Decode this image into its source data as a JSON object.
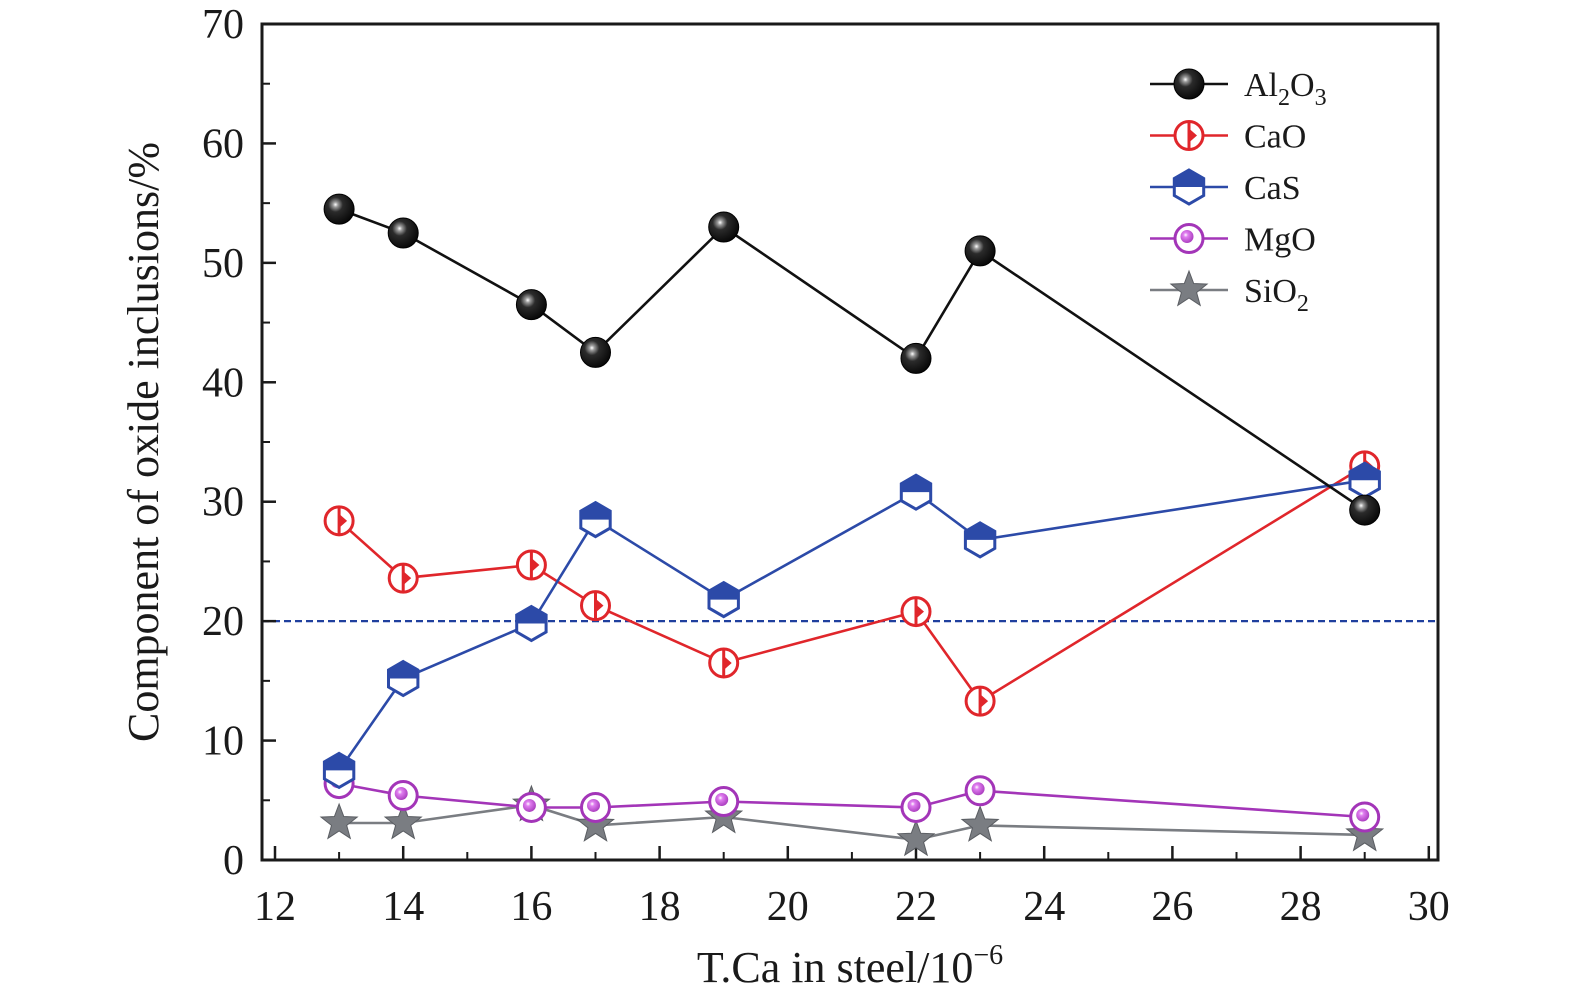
{
  "chart_data": {
    "type": "line",
    "xlabel": "T.Ca in steel/10",
    "xlabel_sup": "−6",
    "ylabel": "Component of oxide inclusions/%",
    "xlim": [
      12,
      30
    ],
    "ylim": [
      0,
      70
    ],
    "xticks": [
      "12",
      "14",
      "16",
      "18",
      "20",
      "22",
      "24",
      "26",
      "28",
      "30"
    ],
    "yticks": [
      "0",
      "10",
      "20",
      "30",
      "40",
      "50",
      "60",
      "70"
    ],
    "reference_line": {
      "y": 20,
      "style": "dashed",
      "color": "#1f3f9e"
    },
    "legend_position": "top-right",
    "series": [
      {
        "name": "Al2O3",
        "label_main": "Al",
        "label_sub1": "2",
        "label_mid": "O",
        "label_sub2": "3",
        "color": "#111111",
        "marker": "sphere",
        "x": [
          13,
          14,
          16,
          17,
          19,
          22,
          23,
          29
        ],
        "y": [
          54.5,
          52.5,
          46.5,
          42.5,
          53.0,
          42.0,
          51.0,
          29.3
        ]
      },
      {
        "name": "CaO",
        "label_main": "CaO",
        "color": "#e0262b",
        "marker": "half-circle",
        "x": [
          13,
          14,
          16,
          17,
          19,
          22,
          23,
          29
        ],
        "y": [
          28.4,
          23.6,
          24.7,
          21.3,
          16.5,
          20.8,
          13.3,
          33.0
        ]
      },
      {
        "name": "CaS",
        "label_main": "CaS",
        "color": "#2c4aa8",
        "marker": "half-hexagon",
        "x": [
          13,
          14,
          16,
          17,
          19,
          22,
          23,
          29
        ],
        "y": [
          7.5,
          15.2,
          19.8,
          28.5,
          21.8,
          30.8,
          26.8,
          31.8
        ]
      },
      {
        "name": "MgO",
        "label_main": "MgO",
        "color": "#a335b8",
        "marker": "ring-dot",
        "x": [
          13,
          14,
          16,
          17,
          19,
          22,
          23,
          29
        ],
        "y": [
          6.4,
          5.4,
          4.4,
          4.4,
          4.9,
          4.4,
          5.8,
          3.6
        ]
      },
      {
        "name": "SiO2",
        "label_main": "SiO",
        "label_sub1": "2",
        "color": "#7a7d82",
        "marker": "star",
        "x": [
          13,
          14,
          16,
          17,
          19,
          22,
          23,
          29
        ],
        "y": [
          3.1,
          3.1,
          4.6,
          2.9,
          3.6,
          1.7,
          2.9,
          2.1
        ]
      }
    ]
  }
}
